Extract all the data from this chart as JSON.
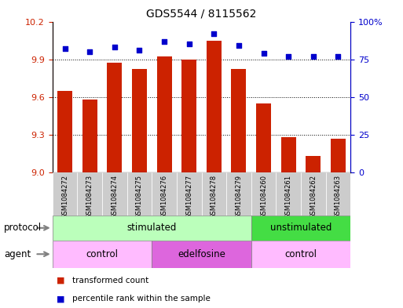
{
  "title": "GDS5544 / 8115562",
  "samples": [
    "GSM1084272",
    "GSM1084273",
    "GSM1084274",
    "GSM1084275",
    "GSM1084276",
    "GSM1084277",
    "GSM1084278",
    "GSM1084279",
    "GSM1084260",
    "GSM1084261",
    "GSM1084262",
    "GSM1084263"
  ],
  "bar_values": [
    9.65,
    9.58,
    9.87,
    9.82,
    9.92,
    9.9,
    10.05,
    9.82,
    9.55,
    9.28,
    9.13,
    9.27
  ],
  "dot_values": [
    82,
    80,
    83,
    81,
    87,
    85,
    92,
    84,
    79,
    77,
    77,
    77
  ],
  "ylim_left": [
    9.0,
    10.2
  ],
  "ylim_right": [
    0,
    100
  ],
  "yticks_left": [
    9.0,
    9.3,
    9.6,
    9.9,
    10.2
  ],
  "yticks_right": [
    0,
    25,
    50,
    75,
    100
  ],
  "bar_color": "#cc2200",
  "dot_color": "#0000cc",
  "bar_width": 0.6,
  "protocol_groups": [
    {
      "label": "stimulated",
      "start": 0,
      "end": 8,
      "color": "#bbffbb"
    },
    {
      "label": "unstimulated",
      "start": 8,
      "end": 12,
      "color": "#44dd44"
    }
  ],
  "agent_groups": [
    {
      "label": "control",
      "start": 0,
      "end": 4,
      "color": "#ffbbff"
    },
    {
      "label": "edelfosine",
      "start": 4,
      "end": 8,
      "color": "#dd66dd"
    },
    {
      "label": "control",
      "start": 8,
      "end": 12,
      "color": "#ffbbff"
    }
  ],
  "legend_bar_label": "transformed count",
  "legend_dot_label": "percentile rank within the sample",
  "protocol_label": "protocol",
  "agent_label": "agent",
  "left_tick_color": "#cc2200",
  "right_tick_color": "#0000cc",
  "sample_box_color": "#cccccc",
  "gridlines": [
    9.3,
    9.6,
    9.9
  ]
}
